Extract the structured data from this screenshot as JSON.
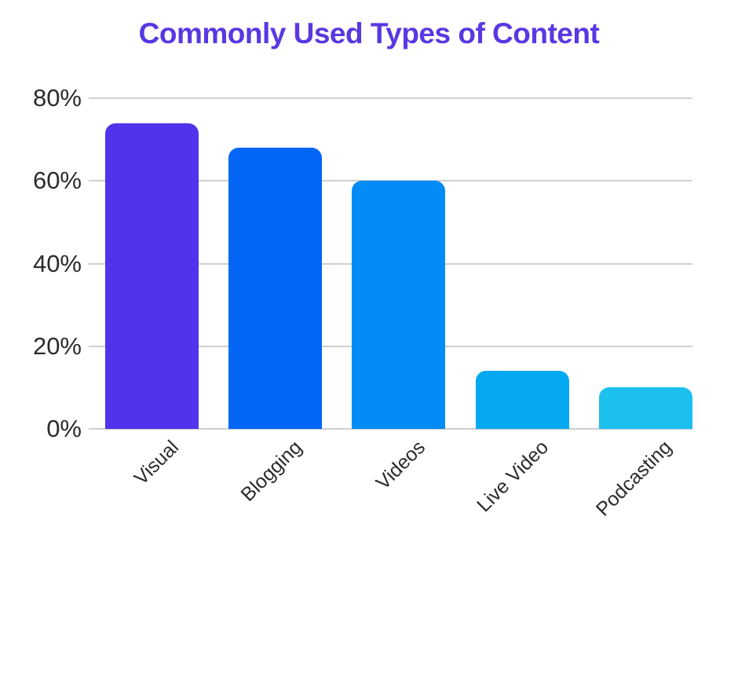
{
  "chart_data": {
    "type": "bar",
    "title": "Commonly Used Types of Content",
    "categories": [
      "Visual",
      "Blogging",
      "Videos",
      "Live Video",
      "Podcasting"
    ],
    "values": [
      74,
      68,
      60,
      14,
      10
    ],
    "value_unit": "%",
    "bar_colors": [
      "#5233EB",
      "#0366F6",
      "#038CF6",
      "#04A9F2",
      "#1BC0EF"
    ],
    "y_ticks": [
      {
        "label": "0%",
        "value": 0
      },
      {
        "label": "20%",
        "value": 20
      },
      {
        "label": "40%",
        "value": 40
      },
      {
        "label": "60%",
        "value": 60
      },
      {
        "label": "80%",
        "value": 80
      }
    ],
    "ylim": [
      0,
      80
    ],
    "xlabel": "",
    "ylabel": "",
    "grid": true,
    "legend_position": "none",
    "x_label_rotation_deg": -45,
    "colors": {
      "title": "#5838E2",
      "gridline": "#cfcfcf",
      "axis_text": "#2b2b2b",
      "background": "#ffffff"
    }
  }
}
